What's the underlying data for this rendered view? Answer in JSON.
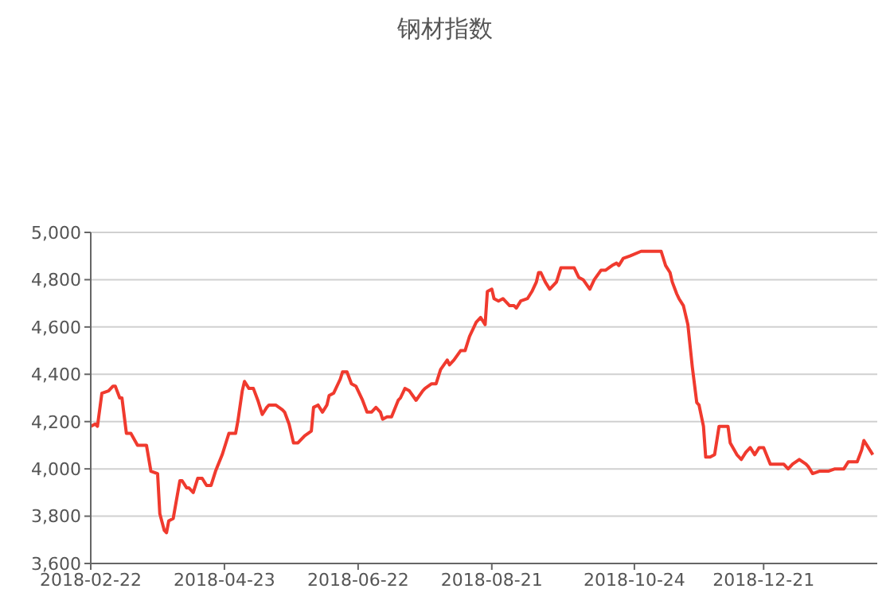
{
  "chart_data": {
    "type": "line",
    "title": "钢材指数",
    "x": [
      "2018-02-22",
      "2018-02-24",
      "2018-02-25",
      "2018-02-27",
      "2018-03-02",
      "2018-03-04",
      "2018-03-05",
      "2018-03-07",
      "2018-03-08",
      "2018-03-10",
      "2018-03-12",
      "2018-03-15",
      "2018-03-19",
      "2018-03-21",
      "2018-03-24",
      "2018-03-25",
      "2018-03-27",
      "2018-03-28",
      "2018-03-29",
      "2018-03-31",
      "2018-04-03",
      "2018-04-04",
      "2018-04-06",
      "2018-04-07",
      "2018-04-09",
      "2018-04-11",
      "2018-04-13",
      "2018-04-15",
      "2018-04-17",
      "2018-04-19",
      "2018-04-22",
      "2018-04-24",
      "2018-04-25",
      "2018-04-28",
      "2018-04-29",
      "2018-05-01",
      "2018-05-02",
      "2018-05-04",
      "2018-05-06",
      "2018-05-08",
      "2018-05-10",
      "2018-05-12",
      "2018-05-13",
      "2018-05-16",
      "2018-05-19",
      "2018-05-20",
      "2018-05-22",
      "2018-05-24",
      "2018-05-26",
      "2018-05-29",
      "2018-06-01",
      "2018-06-02",
      "2018-06-04",
      "2018-06-06",
      "2018-06-08",
      "2018-06-09",
      "2018-06-11",
      "2018-06-14",
      "2018-06-15",
      "2018-06-17",
      "2018-06-19",
      "2018-06-21",
      "2018-06-24",
      "2018-06-26",
      "2018-06-28",
      "2018-06-30",
      "2018-07-02",
      "2018-07-03",
      "2018-07-05",
      "2018-07-07",
      "2018-07-10",
      "2018-07-11",
      "2018-07-13",
      "2018-07-15",
      "2018-07-18",
      "2018-07-21",
      "2018-07-22",
      "2018-07-25",
      "2018-07-27",
      "2018-07-29",
      "2018-08-01",
      "2018-08-02",
      "2018-08-04",
      "2018-08-07",
      "2018-08-09",
      "2018-08-11",
      "2018-08-14",
      "2018-08-16",
      "2018-08-18",
      "2018-08-19",
      "2018-08-21",
      "2018-08-22",
      "2018-08-24",
      "2018-08-26",
      "2018-08-29",
      "2018-08-31",
      "2018-09-01",
      "2018-09-03",
      "2018-09-06",
      "2018-09-08",
      "2018-09-10",
      "2018-09-11",
      "2018-09-12",
      "2018-09-14",
      "2018-09-16",
      "2018-09-19",
      "2018-09-21",
      "2018-09-25",
      "2018-09-27",
      "2018-09-29",
      "2018-10-01",
      "2018-10-04",
      "2018-10-06",
      "2018-10-09",
      "2018-10-11",
      "2018-10-14",
      "2018-10-16",
      "2018-10-17",
      "2018-10-19",
      "2018-10-22",
      "2018-10-27",
      "2018-11-01",
      "2018-11-05",
      "2018-11-07",
      "2018-11-09",
      "2018-11-10",
      "2018-11-12",
      "2018-11-13",
      "2018-11-15",
      "2018-11-17",
      "2018-11-19",
      "2018-11-21",
      "2018-11-22",
      "2018-11-24",
      "2018-11-25",
      "2018-11-27",
      "2018-11-29",
      "2018-12-01",
      "2018-12-03",
      "2018-12-05",
      "2018-12-06",
      "2018-12-09",
      "2018-12-11",
      "2018-12-13",
      "2018-12-15",
      "2018-12-17",
      "2018-12-19",
      "2018-12-21",
      "2018-12-24",
      "2018-12-27",
      "2018-12-30",
      "2019-01-01",
      "2019-01-03",
      "2019-01-06",
      "2019-01-09",
      "2019-01-10",
      "2019-01-12",
      "2019-01-15",
      "2019-01-19",
      "2019-01-22",
      "2019-01-26",
      "2019-01-28",
      "2019-02-01",
      "2019-02-03",
      "2019-02-04",
      "2019-02-06",
      "2019-02-08"
    ],
    "series": [
      {
        "color": "#f03a2e",
        "values": [
          4180,
          4190,
          4180,
          4320,
          4330,
          4350,
          4350,
          4300,
          4300,
          4150,
          4150,
          4100,
          4100,
          3990,
          3980,
          3810,
          3740,
          3730,
          3780,
          3790,
          3950,
          3950,
          3920,
          3920,
          3900,
          3960,
          3960,
          3930,
          3930,
          3990,
          4060,
          4120,
          4150,
          4150,
          4200,
          4330,
          4370,
          4340,
          4340,
          4290,
          4230,
          4260,
          4270,
          4270,
          4250,
          4240,
          4190,
          4110,
          4110,
          4140,
          4160,
          4260,
          4270,
          4240,
          4270,
          4310,
          4320,
          4380,
          4410,
          4410,
          4360,
          4350,
          4290,
          4240,
          4240,
          4260,
          4240,
          4210,
          4220,
          4220,
          4290,
          4300,
          4340,
          4330,
          4290,
          4330,
          4340,
          4360,
          4360,
          4420,
          4460,
          4440,
          4460,
          4500,
          4500,
          4560,
          4620,
          4640,
          4610,
          4750,
          4760,
          4720,
          4710,
          4720,
          4690,
          4690,
          4680,
          4710,
          4720,
          4750,
          4790,
          4830,
          4830,
          4790,
          4760,
          4790,
          4850,
          4850,
          4850,
          4810,
          4800,
          4760,
          4800,
          4840,
          4840,
          4860,
          4870,
          4860,
          4890,
          4900,
          4920,
          4920,
          4920,
          4860,
          4830,
          4790,
          4740,
          4720,
          4690,
          4610,
          4430,
          4280,
          4270,
          4180,
          4050,
          4050,
          4060,
          4180,
          4180,
          4180,
          4110,
          4060,
          4040,
          4070,
          4090,
          4060,
          4090,
          4090,
          4020,
          4020,
          4020,
          4000,
          4020,
          4040,
          4020,
          4010,
          3980,
          3990,
          3990,
          4000,
          4000,
          4030,
          4030,
          4080,
          4120,
          4090,
          4060
        ]
      }
    ],
    "xlim": [
      "2018-02-22",
      "2019-02-10"
    ],
    "xticks": [
      "2018-02-22",
      "2018-04-23",
      "2018-06-22",
      "2018-08-21",
      "2018-10-24",
      "2018-12-21"
    ],
    "ylim": [
      3600,
      5000
    ],
    "yticks": [
      {
        "value": 3600,
        "label": "3,600"
      },
      {
        "value": 3800,
        "label": "3,800"
      },
      {
        "value": 4000,
        "label": "4,000"
      },
      {
        "value": 4200,
        "label": "4,200"
      },
      {
        "value": 4400,
        "label": "4,400"
      },
      {
        "value": 4600,
        "label": "4,600"
      },
      {
        "value": 4800,
        "label": "4,800"
      },
      {
        "value": 5000,
        "label": "5,000"
      }
    ],
    "grid": "y",
    "marker": "none",
    "line_style": "solid",
    "legend": false
  }
}
